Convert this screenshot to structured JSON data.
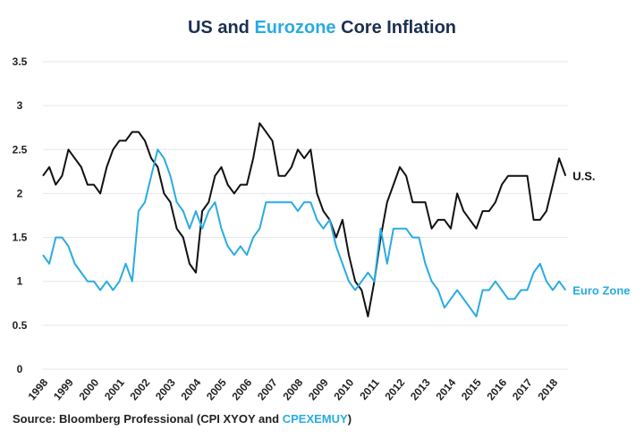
{
  "chart_data": {
    "type": "line",
    "title_parts": [
      "US",
      " and ",
      "Eurozone",
      " Core Inflation"
    ],
    "colors": {
      "title": "#1b3050",
      "us": "#111111",
      "euro": "#29abe2",
      "grid": "#e6e6e6"
    },
    "ylim": [
      0,
      3.5
    ],
    "yticks": [
      "0",
      "0.5",
      "1",
      "1.5",
      "2",
      "2.5",
      "3",
      "3.5"
    ],
    "xticks": [
      "1998",
      "1999",
      "2000",
      "2001",
      "2002",
      "2003",
      "2004",
      "2005",
      "2006",
      "2007",
      "2008",
      "2009",
      "2010",
      "2011",
      "2012",
      "2013",
      "2014",
      "2015",
      "2016",
      "2017",
      "2018"
    ],
    "grid": true,
    "x_start": 1998,
    "x_step": 0.25,
    "series": [
      {
        "name": "U.S.",
        "values": [
          2.2,
          2.3,
          2.1,
          2.2,
          2.5,
          2.4,
          2.3,
          2.1,
          2.1,
          2.0,
          2.3,
          2.5,
          2.6,
          2.6,
          2.7,
          2.7,
          2.6,
          2.4,
          2.3,
          2.0,
          1.9,
          1.6,
          1.5,
          1.2,
          1.1,
          1.8,
          1.9,
          2.2,
          2.3,
          2.1,
          2.0,
          2.1,
          2.1,
          2.4,
          2.8,
          2.7,
          2.6,
          2.2,
          2.2,
          2.3,
          2.5,
          2.4,
          2.5,
          2.0,
          1.8,
          1.7,
          1.5,
          1.7,
          1.3,
          1.0,
          0.9,
          0.6,
          1.0,
          1.5,
          1.9,
          2.1,
          2.3,
          2.2,
          1.9,
          1.9,
          1.9,
          1.6,
          1.7,
          1.7,
          1.6,
          2.0,
          1.8,
          1.7,
          1.6,
          1.8,
          1.8,
          1.9,
          2.1,
          2.2,
          2.2,
          2.2,
          2.2,
          1.7,
          1.7,
          1.8,
          2.1,
          2.4,
          2.2
        ]
      },
      {
        "name": "Euro Zone",
        "values": [
          1.3,
          1.2,
          1.5,
          1.5,
          1.4,
          1.2,
          1.1,
          1.0,
          1.0,
          0.9,
          1.0,
          0.9,
          1.0,
          1.2,
          1.0,
          1.8,
          1.9,
          2.2,
          2.5,
          2.4,
          2.2,
          1.9,
          1.8,
          1.6,
          1.8,
          1.6,
          1.8,
          1.9,
          1.6,
          1.4,
          1.3,
          1.4,
          1.3,
          1.5,
          1.6,
          1.9,
          1.9,
          1.9,
          1.9,
          1.9,
          1.8,
          1.9,
          1.9,
          1.7,
          1.6,
          1.7,
          1.4,
          1.2,
          1.0,
          0.9,
          1.0,
          1.1,
          1.0,
          1.6,
          1.2,
          1.6,
          1.6,
          1.6,
          1.5,
          1.5,
          1.2,
          1.0,
          0.9,
          0.7,
          0.8,
          0.9,
          0.8,
          0.7,
          0.6,
          0.9,
          0.9,
          1.0,
          0.9,
          0.8,
          0.8,
          0.9,
          0.9,
          1.1,
          1.2,
          1.0,
          0.9,
          1.0,
          0.9
        ]
      }
    ],
    "source_parts": [
      "Source: Bloomberg Professional  (CPI XYOY and ",
      "CPEXEMUY",
      ")"
    ]
  }
}
